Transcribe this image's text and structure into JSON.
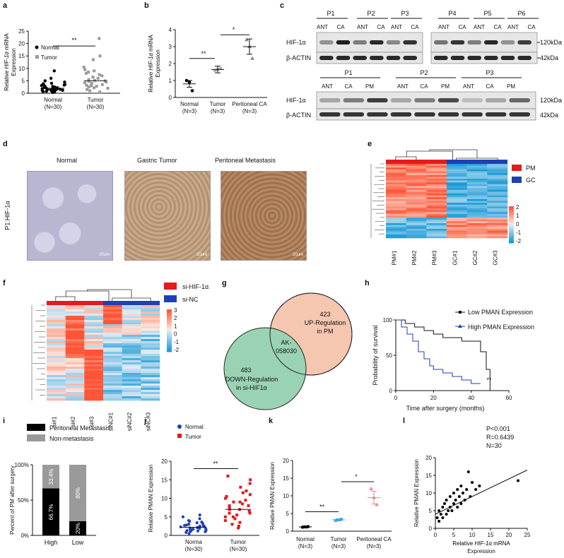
{
  "panels": {
    "a": {
      "letter": "a",
      "legend": [
        "Normal",
        "Tumor"
      ],
      "ylabel_pre": "Relative ",
      "ylabel_it": "HIF-1α",
      "ylabel_post": " mRNA",
      "ylabel2": "Expression",
      "yticks": [
        "0",
        "5",
        "10",
        "15",
        "20",
        "25"
      ],
      "xticks": [
        "Normal",
        "Tumor"
      ],
      "xticks2": [
        "(N=30)",
        "(N=30)"
      ],
      "sig": "**"
    },
    "b": {
      "letter": "b",
      "ylabel_pre": "Relative ",
      "ylabel_it": "HIF-1α",
      "ylabel_post": " mRNA",
      "ylabel2": "Expression",
      "yticks": [
        "0",
        "1",
        "2",
        "3",
        "4"
      ],
      "xticks": [
        "Normal",
        "Tumor",
        "Peritoneal CA"
      ],
      "xticks2": [
        "(N=3)",
        "(N=3)",
        "(N=3)"
      ],
      "sig1": "**",
      "sig2": "*"
    },
    "c": {
      "letter": "c",
      "top_patients": [
        "P1",
        "P2",
        "P3",
        "P4",
        "P5",
        "P6"
      ],
      "lane": [
        "ANT",
        "CA"
      ],
      "bottom_patients": [
        "P1",
        "P2",
        "P3"
      ],
      "lane3": [
        "ANT",
        "CA",
        "PM"
      ],
      "hif": "HIF-1α",
      "actin": "β-ACTIN",
      "kda120": "120kDa",
      "kda42": "42kDa"
    },
    "d": {
      "letter": "d",
      "titles": [
        "Normal",
        "Gastric Tumor",
        "Peritoneal Metastasis"
      ],
      "side": "P1:HIF-1α",
      "scale": "20um"
    },
    "e": {
      "letter": "e",
      "legend": [
        "PM",
        "GC"
      ],
      "samples": [
        "PM#1",
        "PM#2",
        "PM#3",
        "GC#1",
        "GC#2",
        "GC#3"
      ],
      "scale": [
        "2",
        "1",
        "0",
        "-1",
        "-2"
      ]
    },
    "f": {
      "letter": "f",
      "legend": [
        "si-HIF-1α",
        "si-NC"
      ],
      "samples": [
        "si#1",
        "si#2",
        "si#3",
        "siNC#1",
        "siNC#2",
        "siNC#3"
      ],
      "scale": [
        "3",
        "2",
        "1",
        "0",
        "-1",
        "-2"
      ]
    },
    "g": {
      "letter": "g",
      "up_n": "423",
      "up_l1": "UP-Regulation",
      "up_l2": "in PM",
      "down_n": "483",
      "down_l1": "DOWN-Regulation",
      "down_l2": "in si-HIF1α",
      "center1": "AK-",
      "center2": "058030"
    },
    "h": {
      "letter": "h",
      "legend": [
        "Low PMAN Expression",
        "High PMAN Expression"
      ],
      "ylabel": "Probability of survival",
      "xlabel": "Time after surgery (months)",
      "yticks": [
        "0",
        "50",
        "100"
      ],
      "xticks": [
        "0",
        "20",
        "40",
        "60"
      ],
      "sig": "**"
    },
    "i": {
      "letter": "i",
      "legend": [
        "Peritoneal Metastasis",
        "Non-metastasis"
      ],
      "ylabel": "Percent of PM after surgery",
      "yticks": [
        "0%",
        "50%",
        "100%"
      ],
      "xticks": [
        "High",
        "Low"
      ],
      "high_pm": "66.7%",
      "high_non": "33.4%",
      "low_pm": "20%",
      "low_non": "80%"
    },
    "j": {
      "letter": "j",
      "legend": [
        "Normal",
        "Tumor"
      ],
      "ylabel": "Relative PMAN Expression",
      "yticks": [
        "0",
        "5",
        "10",
        "15",
        "20"
      ],
      "xticks": [
        "Norma",
        "Tumor"
      ],
      "xticks2": [
        "(N=30)",
        "(N=30)"
      ],
      "sig": "**"
    },
    "k": {
      "letter": "k",
      "ylabel": "Relative PMAN Expression",
      "yticks": [
        "0",
        "5",
        "10",
        "15",
        "20"
      ],
      "xticks": [
        "Normal",
        "Tumor",
        "Peritoneal CA"
      ],
      "xticks2": [
        "(N=3)",
        "(N=3)",
        "(N=3)"
      ],
      "sig1": "**",
      "sig2": "*"
    },
    "l": {
      "letter": "l",
      "ylabel": "Relative PMAN Expression",
      "xlabel_pre": "Relative ",
      "xlabel_it": "HIF-1α",
      "xlabel_post": " mRNA",
      "xlabel2": "Expression",
      "yticks": [
        "0",
        "5",
        "10",
        "15",
        "20"
      ],
      "xticks": [
        "0",
        "5",
        "10",
        "15",
        "20",
        "25"
      ],
      "stat1": "P<0.001",
      "stat2": "R=0.6439",
      "stat3": "N=30"
    }
  },
  "chart_data": [
    {
      "type": "scatter",
      "panel": "a",
      "title": "",
      "ylim": [
        0,
        25
      ],
      "series": [
        {
          "name": "Normal",
          "mean": 2.0,
          "values": [
            0.3,
            0.5,
            0.6,
            0.8,
            0.9,
            1.0,
            1.1,
            1.2,
            1.3,
            1.4,
            1.5,
            1.6,
            1.7,
            1.8,
            2.0,
            2.1,
            2.2,
            2.3,
            2.5,
            2.7,
            2.9,
            3.1,
            3.3,
            3.5,
            3.8,
            4.0,
            4.5,
            5.0,
            6.0,
            9.0
          ]
        },
        {
          "name": "Tumor",
          "mean": 5.0,
          "values": [
            0.5,
            1.0,
            1.5,
            2.0,
            2.2,
            2.5,
            2.8,
            3.0,
            3.2,
            3.5,
            3.8,
            4.0,
            4.2,
            4.5,
            4.8,
            5.0,
            5.2,
            5.5,
            6.0,
            6.5,
            7.0,
            7.5,
            8.0,
            8.5,
            9.0,
            9.5,
            10.5,
            13.5,
            15.0,
            22.0
          ]
        }
      ]
    },
    {
      "type": "scatter",
      "panel": "b",
      "ylim": [
        0,
        4
      ],
      "categories": [
        "Normal",
        "Tumor",
        "Peritoneal CA"
      ],
      "series": [
        {
          "name": "Normal",
          "mean": 0.8,
          "values": [
            1.0,
            0.9,
            0.4
          ]
        },
        {
          "name": "Tumor",
          "mean": 1.65,
          "values": [
            1.6,
            1.65,
            1.7
          ]
        },
        {
          "name": "Peritoneal CA",
          "mean": 3.0,
          "values": [
            3.4,
            3.0,
            2.3
          ]
        }
      ]
    },
    {
      "type": "line",
      "panel": "h",
      "ylim": [
        0,
        100
      ],
      "xlim": [
        0,
        60
      ],
      "series": [
        {
          "name": "Low PMAN Expression",
          "x": [
            0,
            5,
            10,
            15,
            20,
            25,
            30,
            35,
            40,
            45,
            48,
            50
          ],
          "y": [
            100,
            95,
            90,
            85,
            80,
            75,
            75,
            70,
            70,
            55,
            30,
            0
          ]
        },
        {
          "name": "High PMAN Expression",
          "x": [
            0,
            3,
            6,
            9,
            12,
            15,
            18,
            20,
            25,
            30,
            35,
            40,
            45
          ],
          "y": [
            100,
            90,
            80,
            70,
            55,
            45,
            35,
            30,
            25,
            20,
            15,
            10,
            10
          ]
        }
      ]
    },
    {
      "type": "bar",
      "panel": "i",
      "categories": [
        "High",
        "Low"
      ],
      "series": [
        {
          "name": "Peritoneal Metastasis",
          "values": [
            66.7,
            20
          ]
        },
        {
          "name": "Non-metastasis",
          "values": [
            33.4,
            80
          ]
        }
      ]
    },
    {
      "type": "scatter",
      "panel": "j",
      "ylim": [
        0,
        20
      ],
      "series": [
        {
          "name": "Normal",
          "mean": 2.2,
          "values": [
            0.5,
            0.8,
            1.0,
            1.1,
            1.2,
            1.3,
            1.4,
            1.5,
            1.6,
            1.7,
            1.8,
            1.9,
            2.0,
            2.1,
            2.2,
            2.3,
            2.4,
            2.5,
            2.6,
            2.7,
            2.8,
            3.0,
            3.2,
            3.4,
            3.6,
            3.8,
            4.0,
            4.5,
            5.0,
            5.5
          ]
        },
        {
          "name": "Tumor",
          "mean": 7.0,
          "values": [
            2.0,
            2.5,
            3.0,
            3.5,
            4.0,
            4.5,
            5.0,
            5.0,
            5.5,
            6.0,
            6.0,
            6.5,
            7.0,
            7.0,
            7.5,
            8.0,
            8.0,
            8.5,
            9.0,
            9.0,
            9.5,
            10.0,
            10.5,
            11.0,
            11.5,
            12.0,
            13.0,
            14.0,
            15.0,
            16.0
          ]
        }
      ]
    },
    {
      "type": "scatter",
      "panel": "k",
      "ylim": [
        0,
        20
      ],
      "categories": [
        "Normal",
        "Tumor",
        "Peritoneal CA"
      ],
      "series": [
        {
          "name": "Normal",
          "mean": 1.2,
          "values": [
            1.1,
            1.2,
            1.3
          ]
        },
        {
          "name": "Tumor",
          "mean": 3.2,
          "values": [
            3.0,
            3.2,
            3.4
          ]
        },
        {
          "name": "Peritoneal CA",
          "mean": 9.5,
          "values": [
            12.0,
            9.5,
            7.5
          ]
        }
      ]
    },
    {
      "type": "scatter",
      "panel": "l",
      "xlim": [
        0,
        25
      ],
      "ylim": [
        0,
        20
      ],
      "x": [
        0.5,
        1,
        1,
        1.5,
        2,
        2,
        2.5,
        3,
        3,
        3.5,
        4,
        4,
        4.5,
        5,
        5,
        5.5,
        6,
        6,
        6.5,
        7,
        7,
        7.5,
        8,
        8.5,
        9,
        9.5,
        10,
        11,
        12,
        22.5
      ],
      "y": [
        3,
        2,
        5,
        4,
        6,
        3,
        7,
        4,
        8,
        5,
        6,
        9,
        5,
        7,
        10,
        8,
        6,
        11,
        9,
        7,
        12,
        10,
        8,
        11,
        16,
        9,
        13,
        11,
        12,
        13.5
      ]
    }
  ],
  "colors": {
    "black": "#000000",
    "grey": "#9a9a9a",
    "blue": "#1f3fb5",
    "red": "#e41a1c",
    "peach": "#f5c6b0",
    "mint": "#9ad3b3",
    "pink": "#f08a8a",
    "lightblue": "#4aa3df"
  }
}
